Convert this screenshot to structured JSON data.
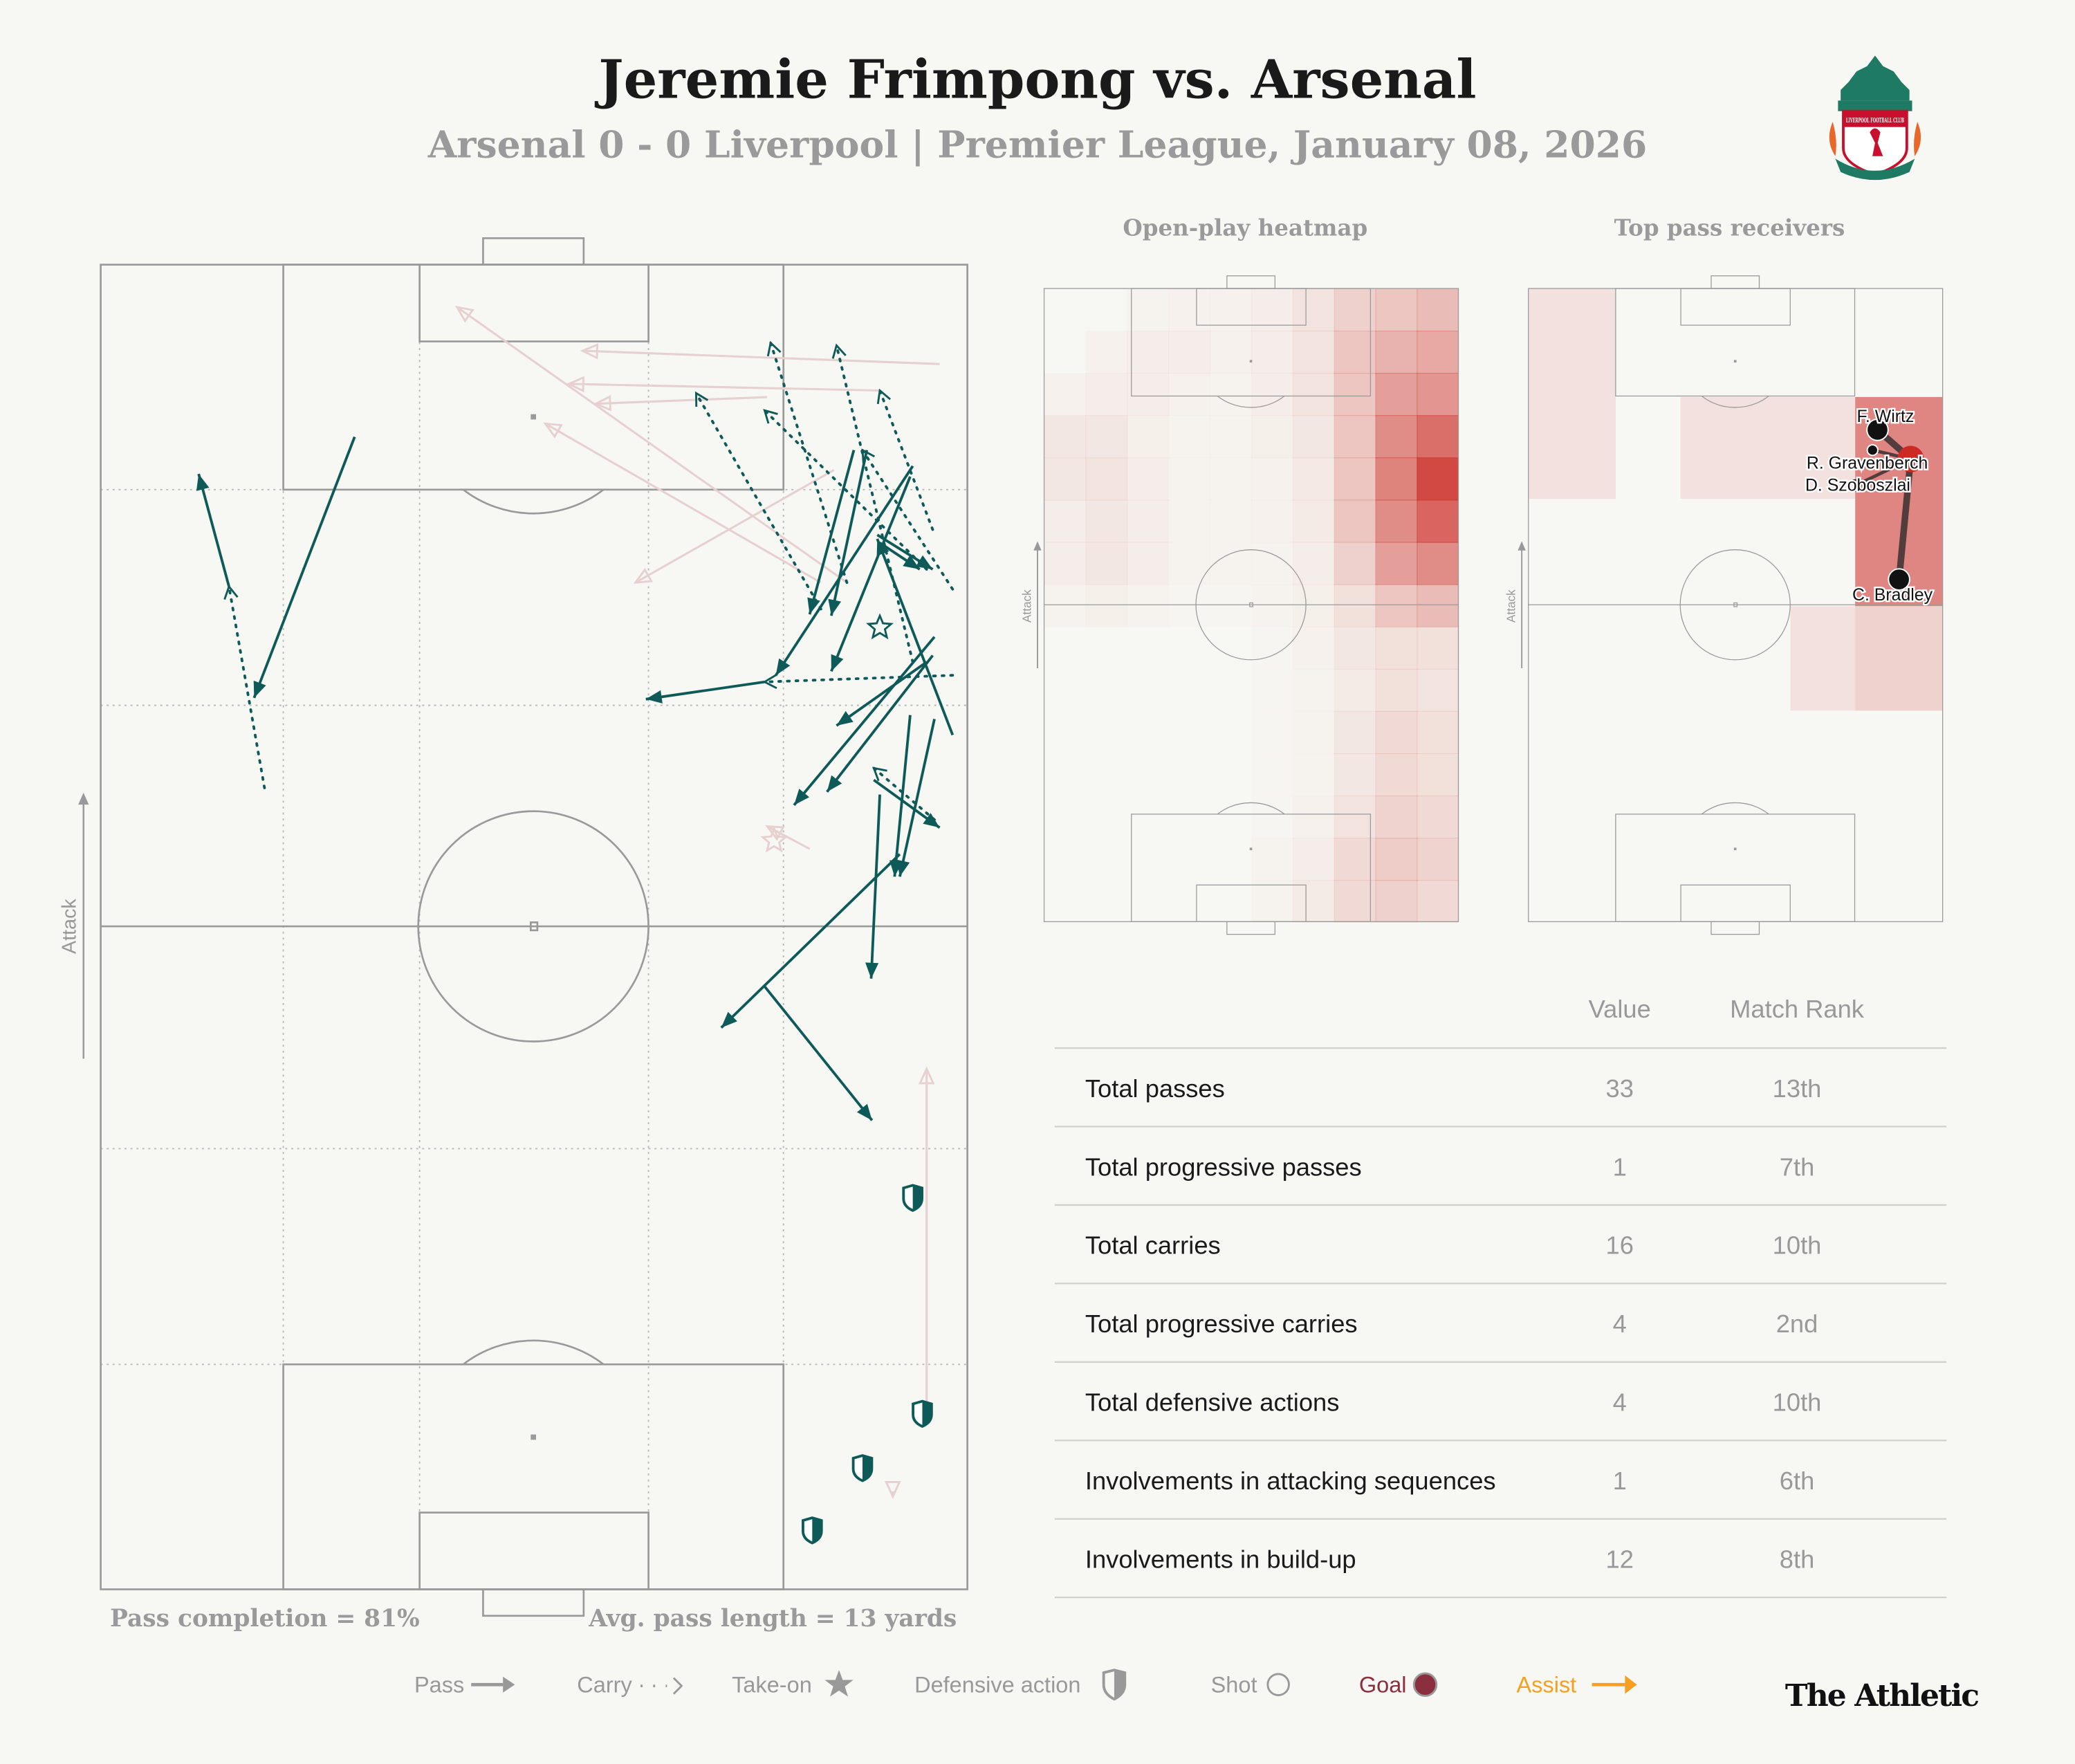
{
  "header": {
    "title": "Jeremie Frimpong vs. Arsenal",
    "subtitle": "Arsenal 0 - 0 Liverpool | Premier League, January 08, 2026",
    "crest_text": "LIVERPOOL FOOTBALL CLUB"
  },
  "colors": {
    "background": "#f7f7f3",
    "pass": "#0e5a58",
    "unsuccessful": "#e6d0d0",
    "heat": "#cc2a24",
    "goal": "#8b2e3e",
    "assist": "#f5a020",
    "muted": "#999999"
  },
  "chart_data": [
    {
      "type": "scatter",
      "name_hint": "event map",
      "attack_label": "Attack",
      "pitch_units": "0-100 width (left to right), 0-100 length (own goal to opponent goal)",
      "passes": [
        {
          "from": [
            29.3,
            87.0
          ],
          "to": [
            17.7,
            67.3
          ],
          "success": true
        },
        {
          "from": [
            14.8,
            75.7
          ],
          "to": [
            11.3,
            84.2
          ],
          "success": true
        },
        {
          "from": [
            76.6,
            68.5
          ],
          "to": [
            62.9,
            67.2
          ],
          "success": true
        },
        {
          "from": [
            93.7,
            84.8
          ],
          "to": [
            77.9,
            69.0
          ],
          "success": true
        },
        {
          "from": [
            88.4,
            86.0
          ],
          "to": [
            84.3,
            73.5
          ],
          "success": true
        },
        {
          "from": [
            86.9,
            86.0
          ],
          "to": [
            81.8,
            73.6
          ],
          "success": true
        },
        {
          "from": [
            93.4,
            84.0
          ],
          "to": [
            84.3,
            69.3
          ],
          "success": true
        },
        {
          "from": [
            89.9,
            79.0
          ],
          "to": [
            94.5,
            77.0
          ],
          "success": true
        },
        {
          "from": [
            89.6,
            79.6
          ],
          "to": [
            96.0,
            77.0
          ],
          "success": true
        },
        {
          "from": [
            96.2,
            71.9
          ],
          "to": [
            80.0,
            59.2
          ],
          "success": true
        },
        {
          "from": [
            96.0,
            70.5
          ],
          "to": [
            83.8,
            60.2
          ],
          "success": true
        },
        {
          "from": [
            93.4,
            66.0
          ],
          "to": [
            91.6,
            53.8
          ],
          "success": true
        },
        {
          "from": [
            96.2,
            65.7
          ],
          "to": [
            92.2,
            53.8
          ],
          "success": true
        },
        {
          "from": [
            89.9,
            60.0
          ],
          "to": [
            88.9,
            46.1
          ],
          "success": true
        },
        {
          "from": [
            92.2,
            55.5
          ],
          "to": [
            71.6,
            42.4
          ],
          "success": true
        },
        {
          "from": [
            76.5,
            45.6
          ],
          "to": [
            89.0,
            35.4
          ],
          "success": true
        },
        {
          "from": [
            89.2,
            61.1
          ],
          "to": [
            96.8,
            57.5
          ],
          "success": true
        },
        {
          "from": [
            98.3,
            64.5
          ],
          "to": [
            89.6,
            79.3
          ],
          "success": true
        },
        {
          "from": [
            95.3,
            70.0
          ],
          "to": [
            84.9,
            65.2
          ],
          "success": true
        },
        {
          "from": [
            96.8,
            92.5
          ],
          "to": [
            55.6,
            93.5
          ],
          "success": false
        },
        {
          "from": [
            86.1,
            76.0
          ],
          "to": [
            41.1,
            96.8
          ],
          "success": false
        },
        {
          "from": [
            89.9,
            90.5
          ],
          "to": [
            54.0,
            91.0
          ],
          "success": false
        },
        {
          "from": [
            76.9,
            90.0
          ],
          "to": [
            57.1,
            89.5
          ],
          "success": false
        },
        {
          "from": [
            84.6,
            84.5
          ],
          "to": [
            61.7,
            76.0
          ],
          "success": false
        },
        {
          "from": [
            83.1,
            76.0
          ],
          "to": [
            51.3,
            88.0
          ],
          "success": false
        },
        {
          "from": [
            95.3,
            13.1
          ],
          "to": [
            95.3,
            39.3
          ],
          "success": false
        },
        {
          "from": [
            81.8,
            55.9
          ],
          "to": [
            76.9,
            57.6
          ],
          "success": false
        },
        {
          "from": [
            91.4,
            7.4
          ],
          "to": [
            91.4,
            7.0
          ],
          "success": false
        }
      ],
      "carries": [
        {
          "from": [
            18.9,
            60.5
          ],
          "to": [
            14.8,
            75.7
          ]
        },
        {
          "from": [
            86.1,
            76.0
          ],
          "to": [
            77.3,
            94.1
          ]
        },
        {
          "from": [
            93.7,
            70.0
          ],
          "to": [
            84.9,
            93.9
          ]
        },
        {
          "from": [
            96.0,
            80.0
          ],
          "to": [
            89.9,
            90.5
          ]
        },
        {
          "from": [
            83.1,
            74.0
          ],
          "to": [
            68.7,
            90.3
          ]
        },
        {
          "from": [
            95.3,
            77.0
          ],
          "to": [
            76.6,
            89.0
          ]
        },
        {
          "from": [
            98.3,
            69.0
          ],
          "to": [
            76.6,
            68.5
          ]
        },
        {
          "from": [
            98.3,
            75.5
          ],
          "to": [
            87.9,
            86.0
          ]
        },
        {
          "from": [
            96.2,
            58.1
          ],
          "to": [
            89.2,
            62.0
          ]
        }
      ],
      "take_ons": [
        {
          "at": [
            89.9,
            72.6
          ],
          "success": true
        },
        {
          "at": [
            77.7,
            56.5
          ],
          "success": false
        }
      ],
      "defensive_actions": [
        [
          93.7,
          29.6
        ],
        [
          94.8,
          13.3
        ],
        [
          87.9,
          9.2
        ],
        [
          82.1,
          4.5
        ]
      ],
      "pass_completion": "Pass completion = 81%",
      "avg_pass_length": "Avg. pass length = 13 yards"
    },
    {
      "type": "heatmap",
      "title": "Open-play heatmap",
      "attack_label": "Attack",
      "grid_cols": 10,
      "grid_rows_top_to_bottom": [
        [
          0,
          0,
          0.02,
          0.03,
          0.03,
          0.05,
          0.1,
          0.2,
          0.25,
          0.3
        ],
        [
          0,
          0.03,
          0.05,
          0.05,
          0.03,
          0.05,
          0.1,
          0.25,
          0.35,
          0.4
        ],
        [
          0.03,
          0.05,
          0.05,
          0.03,
          0.02,
          0.05,
          0.1,
          0.25,
          0.45,
          0.5
        ],
        [
          0.08,
          0.08,
          0.04,
          0.02,
          0.02,
          0.04,
          0.08,
          0.25,
          0.55,
          0.7
        ],
        [
          0.08,
          0.1,
          0.05,
          0.02,
          0.02,
          0.03,
          0.07,
          0.25,
          0.6,
          0.9
        ],
        [
          0.05,
          0.08,
          0.05,
          0.02,
          0.02,
          0.03,
          0.06,
          0.25,
          0.55,
          0.75
        ],
        [
          0.05,
          0.08,
          0.05,
          0.02,
          0.02,
          0.02,
          0.05,
          0.2,
          0.45,
          0.55
        ],
        [
          0.02,
          0.04,
          0.02,
          0.01,
          0.01,
          0.02,
          0.04,
          0.12,
          0.25,
          0.3
        ],
        [
          0,
          0,
          0,
          0,
          0,
          0.01,
          0.03,
          0.08,
          0.12,
          0.12
        ],
        [
          0,
          0,
          0,
          0,
          0,
          0.01,
          0.02,
          0.06,
          0.12,
          0.1
        ],
        [
          0,
          0,
          0,
          0,
          0,
          0.01,
          0.02,
          0.08,
          0.15,
          0.12
        ],
        [
          0,
          0,
          0,
          0,
          0,
          0.01,
          0.02,
          0.08,
          0.15,
          0.12
        ],
        [
          0,
          0,
          0,
          0,
          0,
          0.01,
          0.03,
          0.1,
          0.18,
          0.15
        ],
        [
          0,
          0,
          0,
          0,
          0,
          0.02,
          0.05,
          0.15,
          0.22,
          0.18
        ],
        [
          0,
          0,
          0,
          0,
          0,
          0.02,
          0.06,
          0.15,
          0.2,
          0.15
        ]
      ]
    },
    {
      "type": "scatter",
      "title": "Top pass receivers",
      "attack_label": "Attack",
      "zones": [
        {
          "cols": [
            0,
            0
          ],
          "rows": [
            0,
            1
          ],
          "intensity": 0.1
        },
        {
          "cols": [
            2,
            3
          ],
          "rows": [
            1,
            1
          ],
          "intensity": 0.1
        },
        {
          "cols": [
            4,
            4
          ],
          "rows": [
            1,
            2
          ],
          "intensity": 0.55
        },
        {
          "cols": [
            3,
            3
          ],
          "rows": [
            3,
            3
          ],
          "intensity": 0.1
        },
        {
          "cols": [
            4,
            4
          ],
          "rows": [
            3,
            3
          ],
          "intensity": 0.18
        }
      ],
      "player": {
        "at": [
          92.3,
          73.1
        ]
      },
      "receivers": [
        {
          "name": "F. Wirtz",
          "at": [
            84.3,
            77.7
          ],
          "size": "large"
        },
        {
          "name": "R. Gravenberch",
          "at": [
            83.1,
            74.5
          ],
          "size": "small"
        },
        {
          "name": "D. Szoboszlai",
          "at": [
            78.9,
            68.9
          ],
          "size": "small"
        },
        {
          "name": "C. Bradley",
          "at": [
            89.5,
            54.1
          ],
          "size": "large"
        }
      ]
    },
    {
      "type": "table",
      "columns": [
        "",
        "Value",
        "Match Rank"
      ],
      "rows": [
        [
          "Total passes",
          "33",
          "13th"
        ],
        [
          "Total progressive passes",
          "1",
          "7th"
        ],
        [
          "Total carries",
          "16",
          "10th"
        ],
        [
          "Total progressive carries",
          "4",
          "2nd"
        ],
        [
          "Total defensive actions",
          "4",
          "10th"
        ],
        [
          "Involvements in attacking sequences",
          "1",
          "6th"
        ],
        [
          "Involvements in build-up",
          "12",
          "8th"
        ]
      ]
    }
  ],
  "legend": {
    "pass": "Pass",
    "carry": "Carry",
    "take_on": "Take-on",
    "defensive": "Defensive action",
    "shot": "Shot",
    "goal": "Goal",
    "assist": "Assist"
  },
  "brand": "The Athletic"
}
